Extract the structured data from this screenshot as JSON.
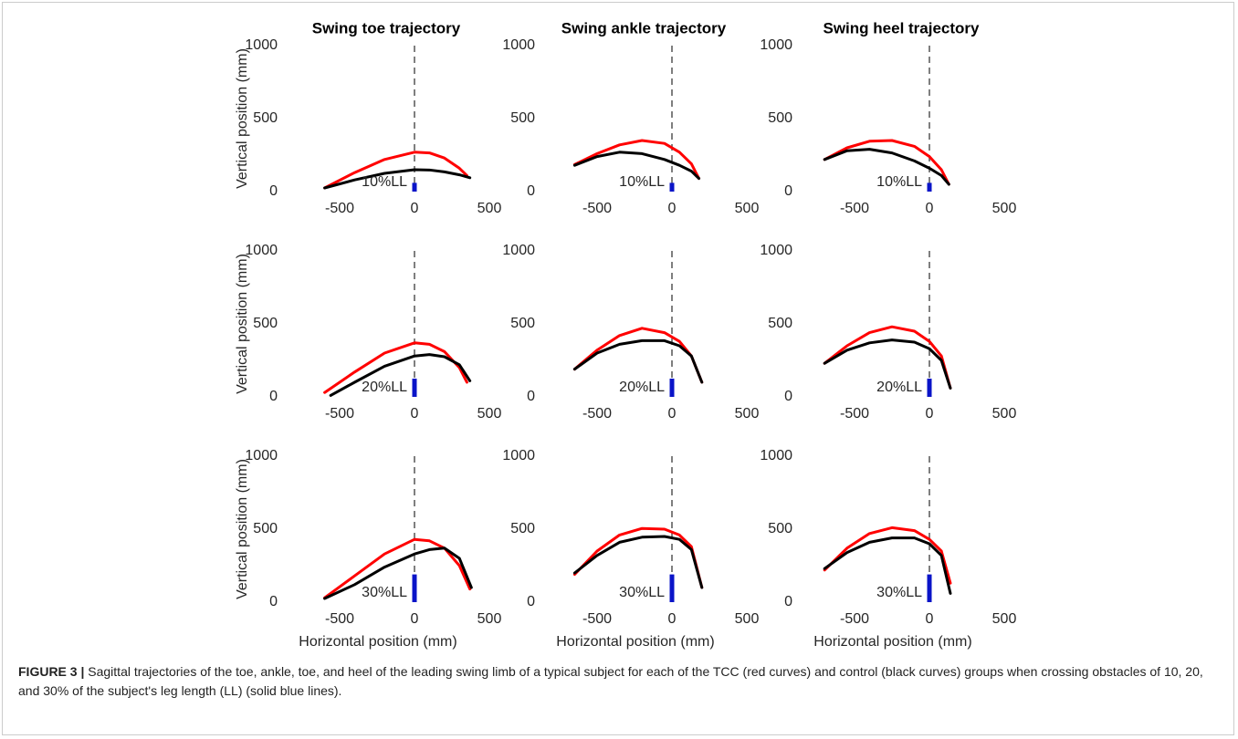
{
  "chart_data": [
    {
      "type": "line",
      "title": "Swing toe trajectory",
      "ylabel": "Vertical position (mm)",
      "annotation": "10%LL",
      "xlim": [
        -1000,
        500
      ],
      "xticks": [
        -500,
        0,
        500
      ],
      "ylim": [
        0,
        1000
      ],
      "yticks": [
        0,
        500,
        1000
      ],
      "vline": 0,
      "obstacle": {
        "x": 0,
        "height": 60,
        "color": "#0a14c8"
      },
      "series": [
        {
          "color": "#ff0000",
          "x": [
            -600,
            -400,
            -200,
            0,
            100,
            200,
            300,
            350
          ],
          "values": [
            25,
            130,
            220,
            270,
            265,
            230,
            160,
            110
          ]
        },
        {
          "color": "#000000",
          "x": [
            -600,
            -400,
            -200,
            0,
            100,
            200,
            300,
            370
          ],
          "values": [
            25,
            80,
            125,
            150,
            148,
            135,
            115,
            95
          ]
        }
      ]
    },
    {
      "type": "line",
      "title": "Swing ankle trajectory",
      "annotation": "10%LL",
      "xlim": [
        -1000,
        500
      ],
      "xticks": [
        -500,
        0,
        500
      ],
      "ylim": [
        0,
        1000
      ],
      "yticks": [
        0,
        500,
        1000
      ],
      "vline": 0,
      "obstacle": {
        "x": 0,
        "height": 60,
        "color": "#0a14c8"
      },
      "series": [
        {
          "color": "#ff0000",
          "x": [
            -650,
            -500,
            -350,
            -200,
            -50,
            50,
            130,
            180
          ],
          "values": [
            185,
            260,
            320,
            350,
            330,
            270,
            190,
            90
          ]
        },
        {
          "color": "#000000",
          "x": [
            -650,
            -500,
            -350,
            -200,
            -50,
            50,
            130,
            180
          ],
          "values": [
            180,
            240,
            270,
            260,
            220,
            180,
            140,
            90
          ]
        }
      ]
    },
    {
      "type": "line",
      "title": "Swing heel trajectory",
      "annotation": "10%LL",
      "xlim": [
        -1000,
        500
      ],
      "xticks": [
        -500,
        0,
        500
      ],
      "ylim": [
        0,
        1000
      ],
      "yticks": [
        0,
        500,
        1000
      ],
      "vline": 0,
      "obstacle": {
        "x": 0,
        "height": 60,
        "color": "#0a14c8"
      },
      "series": [
        {
          "color": "#ff0000",
          "x": [
            -700,
            -550,
            -400,
            -250,
            -100,
            0,
            80,
            130
          ],
          "values": [
            220,
            300,
            345,
            350,
            310,
            240,
            150,
            50
          ]
        },
        {
          "color": "#000000",
          "x": [
            -700,
            -550,
            -400,
            -250,
            -100,
            0,
            80,
            130
          ],
          "values": [
            220,
            280,
            290,
            265,
            210,
            160,
            110,
            50
          ]
        }
      ]
    },
    {
      "type": "line",
      "ylabel": "Vertical position (mm)",
      "annotation": "20%LL",
      "xlim": [
        -1000,
        500
      ],
      "xticks": [
        -500,
        0,
        500
      ],
      "ylim": [
        0,
        1000
      ],
      "yticks": [
        0,
        500,
        1000
      ],
      "vline": 0,
      "obstacle": {
        "x": 0,
        "height": 125,
        "color": "#0a14c8"
      },
      "series": [
        {
          "color": "#ff0000",
          "x": [
            -600,
            -400,
            -200,
            0,
            100,
            200,
            300,
            350
          ],
          "values": [
            30,
            170,
            300,
            370,
            360,
            310,
            200,
            100
          ]
        },
        {
          "color": "#000000",
          "x": [
            -560,
            -400,
            -200,
            0,
            100,
            200,
            300,
            370
          ],
          "values": [
            10,
            100,
            210,
            280,
            290,
            275,
            220,
            110
          ]
        }
      ]
    },
    {
      "type": "line",
      "annotation": "20%LL",
      "xlim": [
        -1000,
        500
      ],
      "xticks": [
        -500,
        0,
        500
      ],
      "ylim": [
        0,
        1000
      ],
      "yticks": [
        0,
        500,
        1000
      ],
      "vline": 0,
      "obstacle": {
        "x": 0,
        "height": 125,
        "color": "#0a14c8"
      },
      "series": [
        {
          "color": "#ff0000",
          "x": [
            -650,
            -500,
            -350,
            -200,
            -50,
            50,
            130,
            200
          ],
          "values": [
            190,
            320,
            420,
            470,
            440,
            380,
            280,
            100
          ]
        },
        {
          "color": "#000000",
          "x": [
            -650,
            -500,
            -350,
            -200,
            -50,
            50,
            130,
            200
          ],
          "values": [
            190,
            300,
            360,
            385,
            385,
            350,
            280,
            100
          ]
        }
      ]
    },
    {
      "type": "line",
      "annotation": "20%LL",
      "xlim": [
        -1000,
        500
      ],
      "xticks": [
        -500,
        0,
        500
      ],
      "ylim": [
        0,
        1000
      ],
      "yticks": [
        0,
        500,
        1000
      ],
      "vline": 0,
      "obstacle": {
        "x": 0,
        "height": 125,
        "color": "#0a14c8"
      },
      "series": [
        {
          "color": "#ff0000",
          "x": [
            -700,
            -550,
            -400,
            -250,
            -100,
            0,
            80,
            140
          ],
          "values": [
            230,
            350,
            440,
            480,
            450,
            380,
            280,
            60
          ]
        },
        {
          "color": "#000000",
          "x": [
            -700,
            -550,
            -400,
            -250,
            -100,
            0,
            80,
            140
          ],
          "values": [
            230,
            320,
            370,
            390,
            375,
            330,
            250,
            60
          ]
        }
      ]
    },
    {
      "type": "line",
      "ylabel": "Vertical position (mm)",
      "xlabel": "Horizontal position (mm)",
      "annotation": "30%LL",
      "xlim": [
        -1000,
        500
      ],
      "xticks": [
        -500,
        0,
        500
      ],
      "ylim": [
        0,
        1000
      ],
      "yticks": [
        0,
        500,
        1000
      ],
      "vline": 0,
      "obstacle": {
        "x": 0,
        "height": 190,
        "color": "#0a14c8"
      },
      "series": [
        {
          "color": "#ff0000",
          "x": [
            -600,
            -400,
            -200,
            0,
            100,
            200,
            300,
            370
          ],
          "values": [
            30,
            180,
            330,
            430,
            420,
            370,
            250,
            90
          ]
        },
        {
          "color": "#000000",
          "x": [
            -600,
            -400,
            -200,
            0,
            100,
            200,
            300,
            380
          ],
          "values": [
            25,
            120,
            240,
            330,
            360,
            370,
            300,
            100
          ]
        }
      ]
    },
    {
      "type": "line",
      "xlabel": "Horizontal position (mm)",
      "annotation": "30%LL",
      "xlim": [
        -1000,
        500
      ],
      "xticks": [
        -500,
        0,
        500
      ],
      "ylim": [
        0,
        1000
      ],
      "yticks": [
        0,
        500,
        1000
      ],
      "vline": 0,
      "obstacle": {
        "x": 0,
        "height": 190,
        "color": "#0a14c8"
      },
      "series": [
        {
          "color": "#ff0000",
          "x": [
            -650,
            -500,
            -350,
            -200,
            -50,
            50,
            130,
            200
          ],
          "values": [
            190,
            350,
            460,
            505,
            500,
            460,
            380,
            100
          ]
        },
        {
          "color": "#000000",
          "x": [
            -650,
            -500,
            -350,
            -200,
            -50,
            50,
            130,
            200
          ],
          "values": [
            200,
            320,
            410,
            445,
            450,
            430,
            360,
            100
          ]
        }
      ]
    },
    {
      "type": "line",
      "xlabel": "Horizontal position (mm)",
      "annotation": "30%LL",
      "xlim": [
        -1000,
        500
      ],
      "xticks": [
        -500,
        0,
        500
      ],
      "ylim": [
        0,
        1000
      ],
      "yticks": [
        0,
        500,
        1000
      ],
      "vline": 0,
      "obstacle": {
        "x": 0,
        "height": 190,
        "color": "#0a14c8"
      },
      "series": [
        {
          "color": "#ff0000",
          "x": [
            -700,
            -550,
            -400,
            -250,
            -100,
            0,
            80,
            140
          ],
          "values": [
            220,
            370,
            470,
            510,
            490,
            430,
            350,
            130
          ]
        },
        {
          "color": "#000000",
          "x": [
            -700,
            -550,
            -400,
            -250,
            -100,
            0,
            80,
            140
          ],
          "values": [
            230,
            340,
            410,
            440,
            440,
            400,
            320,
            60
          ]
        }
      ]
    }
  ],
  "caption": {
    "label": "FIGURE 3 |",
    "text": "Sagittal trajectories of the toe, ankle, toe, and heel of the leading swing limb of a typical subject for each of the TCC (red curves) and control (black curves) groups when crossing obstacles of 10, 20, and 30% of the subject's leg length (LL) (solid blue lines)."
  }
}
